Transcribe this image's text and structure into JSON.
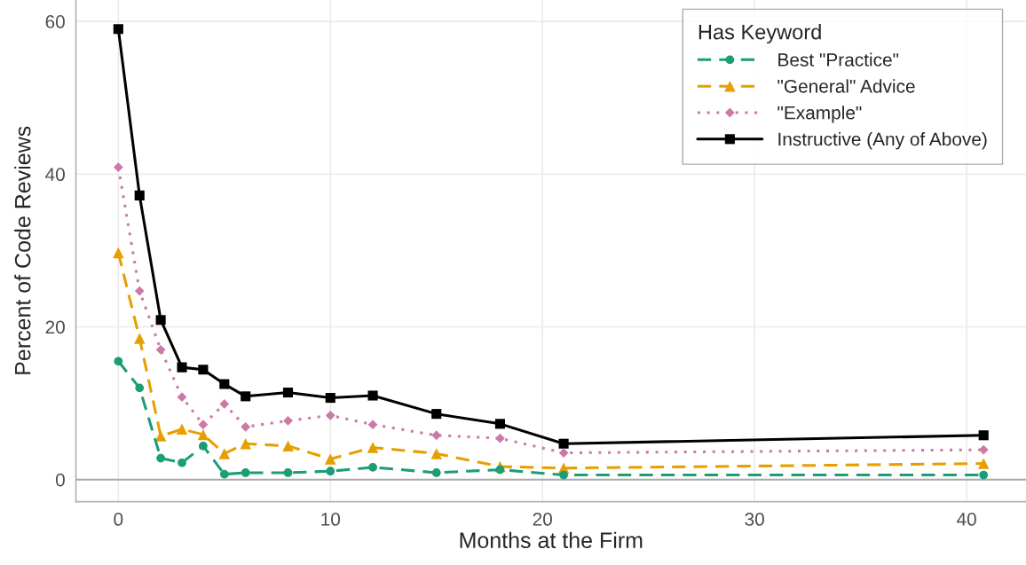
{
  "chart_data": {
    "type": "line",
    "xlabel": "Months at the Firm",
    "ylabel": "Percent of Code Reviews",
    "legend_title": "Has Keyword",
    "x": [
      0,
      1,
      2,
      3,
      4,
      5,
      6,
      8,
      10,
      12,
      15,
      18,
      21,
      40.8
    ],
    "series": [
      {
        "name": "Best \"Practice\"",
        "color": "#1b9e77",
        "marker": "circle",
        "line_style": "dashed",
        "values": [
          15.5,
          12.0,
          2.8,
          2.2,
          4.4,
          0.7,
          0.9,
          0.9,
          1.1,
          1.6,
          0.9,
          1.3,
          0.6,
          0.6
        ]
      },
      {
        "name": "\"General\" Advice",
        "color": "#e69f00",
        "marker": "triangle",
        "line_style": "dashed",
        "values": [
          29.7,
          18.5,
          5.7,
          6.6,
          5.9,
          3.4,
          4.7,
          4.4,
          2.7,
          4.2,
          3.4,
          1.7,
          1.5,
          2.1
        ]
      },
      {
        "name": "\"Example\"",
        "color": "#cc79a7",
        "marker": "diamond",
        "line_style": "dotted",
        "values": [
          40.9,
          24.7,
          17.0,
          10.8,
          7.2,
          9.9,
          6.9,
          7.7,
          8.4,
          7.2,
          5.8,
          5.4,
          3.5,
          3.9
        ]
      },
      {
        "name": "Instructive (Any of Above)",
        "color": "#000000",
        "marker": "square",
        "line_style": "solid",
        "values": [
          59.0,
          37.2,
          20.9,
          14.7,
          14.4,
          12.5,
          10.9,
          11.4,
          10.7,
          11.0,
          8.6,
          7.3,
          4.7,
          5.8
        ]
      }
    ],
    "xlim": [
      -2.0,
      42.8
    ],
    "ylim": [
      -2.9,
      62.8
    ],
    "xticks": [
      0,
      10,
      20,
      30,
      40
    ],
    "yticks": [
      0,
      20,
      40,
      60
    ],
    "ref_lines": [
      {
        "axis": "y",
        "value": 0,
        "color": "#aaaaaa"
      }
    ],
    "grid": true,
    "legend": "top right"
  }
}
